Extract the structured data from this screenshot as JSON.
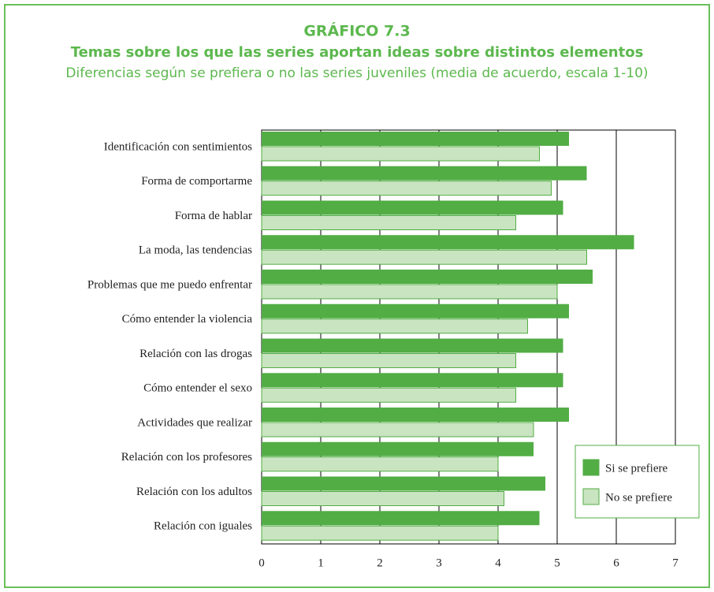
{
  "chart_data": {
    "type": "bar",
    "orientation": "horizontal",
    "title": "GRÁFICO 7.3",
    "subtitle": "Temas sobre los que las series aportan ideas sobre distintos elementos",
    "description": "Diferencias según se prefiera o no las series juveniles (media de acuerdo, escala 1-10)",
    "categories": [
      "Identificación con sentimientos",
      "Forma de comportarme",
      "Forma de hablar",
      "La moda, las tendencias",
      "Problemas que me puedo enfrentar",
      "Cómo entender la violencia",
      "Relación con las drogas",
      "Cómo entender el sexo",
      "Actividades que realizar",
      "Relación con los profesores",
      "Relación con los adultos",
      "Relación con iguales"
    ],
    "series": [
      {
        "name": "Si se prefiere",
        "color": "#52ad45",
        "values": [
          5.2,
          5.5,
          5.1,
          6.3,
          5.6,
          5.2,
          5.1,
          5.1,
          5.2,
          4.6,
          4.8,
          4.7
        ]
      },
      {
        "name": "No se prefiere",
        "color": "#c9e4c0",
        "values": [
          4.7,
          4.9,
          4.3,
          5.5,
          5.0,
          4.5,
          4.3,
          4.3,
          4.6,
          4.0,
          4.1,
          4.0
        ]
      }
    ],
    "xlim": [
      0,
      7
    ],
    "xticks": [
      0,
      1,
      2,
      3,
      4,
      5,
      6,
      7
    ],
    "grid": true,
    "legend": "lower right"
  }
}
